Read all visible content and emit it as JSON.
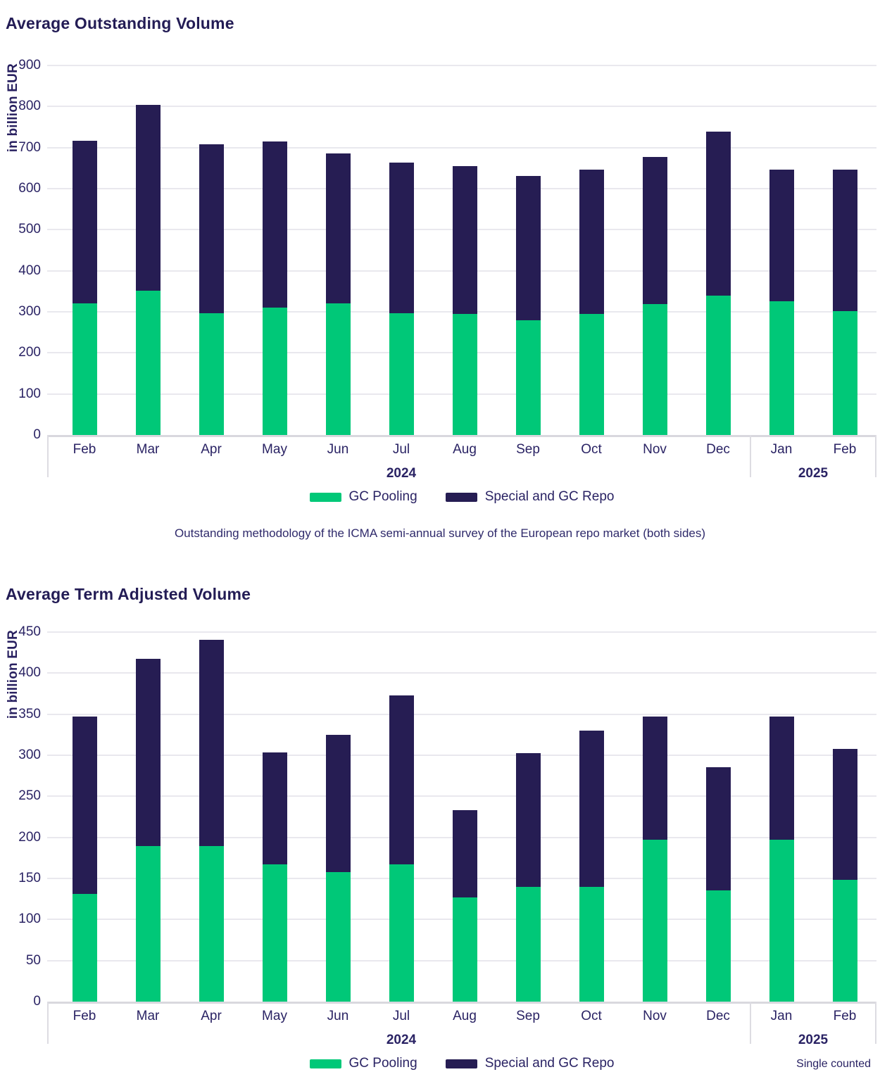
{
  "footnote": "Outstanding methodology of the ICMA semi-annual survey of the European repo market (both sides)",
  "colors": {
    "gc_pooling_green": "#00c878",
    "special_repo_navy": "#261d53",
    "text_navy": "#2a2364",
    "gridline_gray": "#e9e8ee",
    "axis_band_gray": "#d9d8de"
  },
  "chart_data": [
    {
      "type": "bar",
      "stacked": true,
      "title": "Average Outstanding Volume",
      "ylabel": "in billion EUR",
      "xlabel": "",
      "ylim": [
        0,
        900
      ],
      "ytick_step": 100,
      "grid": true,
      "legend_position": "bottom",
      "categories": [
        "Feb",
        "Mar",
        "Apr",
        "May",
        "Jun",
        "Jul",
        "Aug",
        "Sep",
        "Oct",
        "Nov",
        "Dec",
        "Jan",
        "Feb"
      ],
      "year_groups": [
        {
          "label": "2024",
          "months": [
            0,
            10
          ]
        },
        {
          "label": "2025",
          "months": [
            11,
            12
          ]
        }
      ],
      "series": [
        {
          "name": "GC Pooling",
          "color": "#00c878",
          "values": [
            320,
            352,
            296,
            311,
            320,
            296,
            294,
            279,
            295,
            318,
            340,
            325,
            302
          ]
        },
        {
          "name": "Special and GC Repo",
          "color": "#261d53",
          "values": [
            396,
            453,
            412,
            405,
            365,
            366,
            360,
            351,
            351,
            359,
            400,
            321,
            344
          ]
        }
      ],
      "totals": [
        716,
        805,
        708,
        716,
        685,
        662,
        654,
        630,
        646,
        677,
        740,
        646,
        646
      ],
      "note": ""
    },
    {
      "type": "bar",
      "stacked": true,
      "title": "Average Term Adjusted Volume",
      "ylabel": "in billion EUR",
      "xlabel": "",
      "ylim": [
        0,
        450
      ],
      "ytick_step": 50,
      "grid": true,
      "legend_position": "bottom",
      "categories": [
        "Feb",
        "Mar",
        "Apr",
        "May",
        "Jun",
        "Jul",
        "Aug",
        "Sep",
        "Oct",
        "Nov",
        "Dec",
        "Jan",
        "Feb"
      ],
      "year_groups": [
        {
          "label": "2024",
          "months": [
            0,
            10
          ]
        },
        {
          "label": "2025",
          "months": [
            11,
            12
          ]
        }
      ],
      "series": [
        {
          "name": "GC Pooling",
          "color": "#00c878",
          "values": [
            131,
            189,
            189,
            167,
            158,
            167,
            127,
            140,
            140,
            197,
            135,
            197,
            148
          ]
        },
        {
          "name": "Special and GC Repo",
          "color": "#261d53",
          "values": [
            216,
            228,
            251,
            136,
            167,
            206,
            106,
            163,
            190,
            150,
            150,
            150,
            159
          ]
        }
      ],
      "totals": [
        347,
        417,
        440,
        303,
        325,
        373,
        233,
        303,
        330,
        347,
        285,
        347,
        307
      ],
      "note": "Single counted"
    }
  ]
}
